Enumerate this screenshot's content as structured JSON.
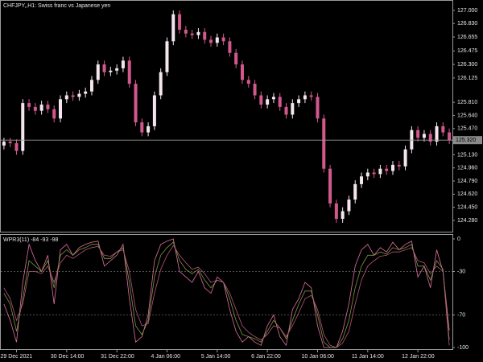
{
  "chart_data": [
    {
      "type": "candlestick",
      "title": "CHFJPY,,H1:  Swiss franc vs Japanese yen",
      "categories": [
        null,
        null,
        "29 Dec 2021",
        null,
        null,
        null,
        null,
        null,
        null,
        null,
        "30 Dec 14:00",
        null,
        null,
        null,
        null,
        null,
        null,
        null,
        "31 Dec 22:00",
        null,
        null,
        null,
        null,
        null,
        null,
        null,
        "4 Jan 06:00",
        null,
        null,
        null,
        null,
        null,
        null,
        null,
        "5 Jan 14:00",
        null,
        null,
        null,
        null,
        null,
        null,
        null,
        "6 Jan 22:00",
        null,
        null,
        null,
        null,
        null,
        null,
        null,
        "10 Jan 06:00",
        null,
        null,
        null,
        null,
        null,
        null,
        null,
        "11 Jan 14:00",
        null,
        null,
        null,
        null,
        null,
        null,
        null,
        "12 Jan 22:00",
        null,
        null,
        null,
        null,
        null
      ],
      "open": [
        125.25,
        125.3,
        125.28,
        125.18,
        125.8,
        125.75,
        125.7,
        125.78,
        125.72,
        125.6,
        125.85,
        125.9,
        125.88,
        125.92,
        125.95,
        126.1,
        126.3,
        126.2,
        126.22,
        126.25,
        126.35,
        126.05,
        125.55,
        125.42,
        125.5,
        125.9,
        126.2,
        126.6,
        126.95,
        126.75,
        126.7,
        126.68,
        126.72,
        126.62,
        126.58,
        126.65,
        126.6,
        126.45,
        126.3,
        126.1,
        126.05,
        125.9,
        125.78,
        125.85,
        125.88,
        125.75,
        125.65,
        125.8,
        125.85,
        125.9,
        125.88,
        125.6,
        124.95,
        124.5,
        124.3,
        124.4,
        124.55,
        124.75,
        124.85,
        124.9,
        124.88,
        124.95,
        124.92,
        125.0,
        124.98,
        125.2,
        125.45,
        125.35,
        125.4,
        125.3,
        125.5,
        125.42
      ],
      "high": [
        125.35,
        125.35,
        125.33,
        125.85,
        125.85,
        125.8,
        125.83,
        125.83,
        125.77,
        125.9,
        125.95,
        125.95,
        125.97,
        126.0,
        126.15,
        126.35,
        126.35,
        126.27,
        126.3,
        126.4,
        126.4,
        126.1,
        125.6,
        125.55,
        125.95,
        126.25,
        126.65,
        127.0,
        127.0,
        126.8,
        126.75,
        126.77,
        126.77,
        126.67,
        126.7,
        126.7,
        126.65,
        126.5,
        126.35,
        126.15,
        126.1,
        125.95,
        125.9,
        125.93,
        125.93,
        125.8,
        125.85,
        125.9,
        125.95,
        125.95,
        125.93,
        125.65,
        125.0,
        124.55,
        124.45,
        124.6,
        124.8,
        124.9,
        124.95,
        124.95,
        125.0,
        125.0,
        125.05,
        125.05,
        125.25,
        125.5,
        125.5,
        125.45,
        125.45,
        125.55,
        125.55,
        125.47
      ],
      "low": [
        125.2,
        125.23,
        125.13,
        125.13,
        125.7,
        125.65,
        125.65,
        125.67,
        125.55,
        125.55,
        125.8,
        125.83,
        125.83,
        125.87,
        125.9,
        126.05,
        126.15,
        126.15,
        126.17,
        126.2,
        126.0,
        125.5,
        125.37,
        125.37,
        125.45,
        125.85,
        126.15,
        126.55,
        126.7,
        126.65,
        126.63,
        126.63,
        126.57,
        126.53,
        126.53,
        126.55,
        126.4,
        126.25,
        126.05,
        126.0,
        125.85,
        125.73,
        125.73,
        125.8,
        125.7,
        125.6,
        125.6,
        125.75,
        125.8,
        125.83,
        125.55,
        124.9,
        124.45,
        124.25,
        124.25,
        124.35,
        124.5,
        124.7,
        124.8,
        124.83,
        124.83,
        124.87,
        124.87,
        124.93,
        124.93,
        125.15,
        125.3,
        125.3,
        125.25,
        125.25,
        125.37,
        125.27
      ],
      "close": [
        125.3,
        125.28,
        125.18,
        125.8,
        125.75,
        125.7,
        125.78,
        125.72,
        125.6,
        125.85,
        125.9,
        125.88,
        125.92,
        125.95,
        126.1,
        126.3,
        126.2,
        126.22,
        126.25,
        126.35,
        126.05,
        125.55,
        125.42,
        125.5,
        125.9,
        126.2,
        126.6,
        126.95,
        126.75,
        126.7,
        126.68,
        126.72,
        126.62,
        126.58,
        126.65,
        126.6,
        126.45,
        126.3,
        126.1,
        126.05,
        125.9,
        125.78,
        125.85,
        125.88,
        125.75,
        125.65,
        125.8,
        125.85,
        125.9,
        125.88,
        125.6,
        124.95,
        124.5,
        124.3,
        124.4,
        124.55,
        124.75,
        124.85,
        124.9,
        124.88,
        124.95,
        124.92,
        125.0,
        124.98,
        125.2,
        125.45,
        125.35,
        125.4,
        125.3,
        125.5,
        125.42,
        125.32
      ],
      "up_color": "#f4e6ee",
      "down_color": "#d2588c",
      "ylim": [
        124.155,
        127.093
      ],
      "yticks": [
        {
          "value": 127.0,
          "label": "127.000"
        },
        {
          "value": 126.83,
          "label": "126.830"
        },
        {
          "value": 126.655,
          "label": "126.655"
        },
        {
          "value": 126.475,
          "label": "126.475"
        },
        {
          "value": 126.3,
          "label": "126.300"
        },
        {
          "value": 126.125,
          "label": "126.125"
        },
        {
          "value": 125.81,
          "label": "125.810"
        },
        {
          "value": 125.64,
          "label": "125.640"
        },
        {
          "value": 125.47,
          "label": "125.470"
        },
        {
          "value": 125.13,
          "label": "125.130"
        },
        {
          "value": 124.96,
          "label": "124.960"
        },
        {
          "value": 124.79,
          "label": "124.790"
        },
        {
          "value": 124.62,
          "label": "124.620"
        },
        {
          "value": 124.45,
          "label": "124.450"
        },
        {
          "value": 124.28,
          "label": "124.280"
        }
      ],
      "price_line": {
        "value": 125.32,
        "label": "125.320"
      }
    },
    {
      "type": "line",
      "title": "WPR3(11) -84 -93 -98",
      "ylim": [
        -100,
        0
      ],
      "yticks": [
        0,
        -30,
        -70,
        -100
      ],
      "levels": [
        -30,
        -70
      ],
      "series": [
        {
          "color": "#e070a4",
          "values": [
            -60,
            -75,
            -95,
            -40,
            -5,
            -20,
            -30,
            -15,
            -60,
            -10,
            -5,
            -15,
            -8,
            -5,
            -3,
            -2,
            -25,
            -20,
            -15,
            -5,
            -55,
            -95,
            -90,
            -70,
            -20,
            -5,
            -2,
            0,
            -30,
            -35,
            -40,
            -30,
            -45,
            -50,
            -35,
            -40,
            -65,
            -85,
            -95,
            -90,
            -95,
            -98,
            -80,
            -70,
            -90,
            -98,
            -65,
            -55,
            -40,
            -45,
            -80,
            -100,
            -100,
            -100,
            -85,
            -60,
            -25,
            -10,
            -5,
            -15,
            -8,
            -12,
            -3,
            -10,
            -5,
            -2,
            -35,
            -25,
            -45,
            -10,
            -30,
            -84
          ]
        },
        {
          "color": "#7c9a3e",
          "values": [
            -50,
            -60,
            -85,
            -55,
            -20,
            -25,
            -30,
            -20,
            -45,
            -15,
            -10,
            -15,
            -10,
            -8,
            -5,
            -5,
            -18,
            -18,
            -12,
            -8,
            -40,
            -80,
            -88,
            -75,
            -35,
            -15,
            -8,
            -3,
            -20,
            -28,
            -32,
            -28,
            -38,
            -45,
            -38,
            -40,
            -55,
            -75,
            -88,
            -90,
            -92,
            -95,
            -85,
            -75,
            -82,
            -92,
            -75,
            -60,
            -48,
            -48,
            -70,
            -95,
            -100,
            -100,
            -92,
            -75,
            -45,
            -25,
            -15,
            -15,
            -12,
            -14,
            -8,
            -10,
            -8,
            -5,
            -25,
            -25,
            -38,
            -20,
            -28,
            -93
          ]
        },
        {
          "color": "#b85480",
          "values": [
            -45,
            -55,
            -75,
            -60,
            -30,
            -30,
            -32,
            -25,
            -40,
            -22,
            -15,
            -18,
            -14,
            -10,
            -8,
            -7,
            -15,
            -16,
            -12,
            -10,
            -30,
            -65,
            -80,
            -78,
            -50,
            -28,
            -15,
            -6,
            -15,
            -22,
            -28,
            -26,
            -32,
            -40,
            -38,
            -40,
            -50,
            -65,
            -80,
            -86,
            -90,
            -93,
            -88,
            -80,
            -82,
            -90,
            -80,
            -68,
            -55,
            -52,
            -65,
            -88,
            -98,
            -100,
            -96,
            -85,
            -60,
            -38,
            -25,
            -20,
            -16,
            -15,
            -12,
            -12,
            -10,
            -8,
            -20,
            -22,
            -32,
            -25,
            -30,
            -98
          ]
        }
      ]
    }
  ]
}
